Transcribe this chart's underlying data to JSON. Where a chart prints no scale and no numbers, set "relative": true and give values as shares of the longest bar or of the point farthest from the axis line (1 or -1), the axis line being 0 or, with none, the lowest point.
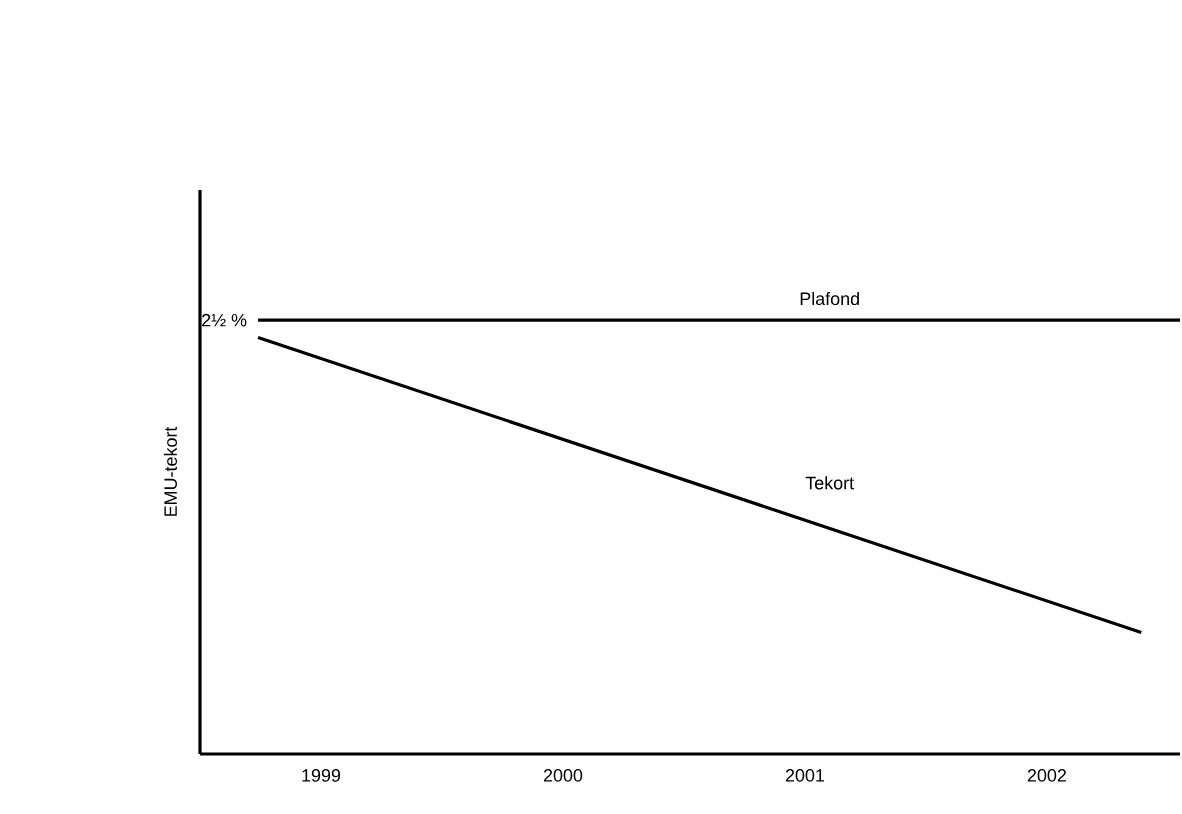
{
  "chart_data": {
    "type": "line",
    "relative": true,
    "ylabel": "EMU-tekort",
    "xlim": [
      1998.5,
      2002.55
    ],
    "xticks": [
      1999,
      2000,
      2001,
      2002
    ],
    "grid": false,
    "marker": "none",
    "line_style": "solid",
    "series": [
      {
        "name": "Plafond",
        "color": "#000000",
        "x": [
          1998.74,
          2002.55
        ],
        "values": [
          1,
          1
        ]
      },
      {
        "name": "Tekort",
        "color": "#000000",
        "x": [
          1998.74,
          2002.39
        ],
        "values": [
          0.96,
          0.28
        ]
      }
    ],
    "annotations": [
      {
        "text": "2½ %",
        "x": 1998.74,
        "y": 1
      }
    ]
  }
}
